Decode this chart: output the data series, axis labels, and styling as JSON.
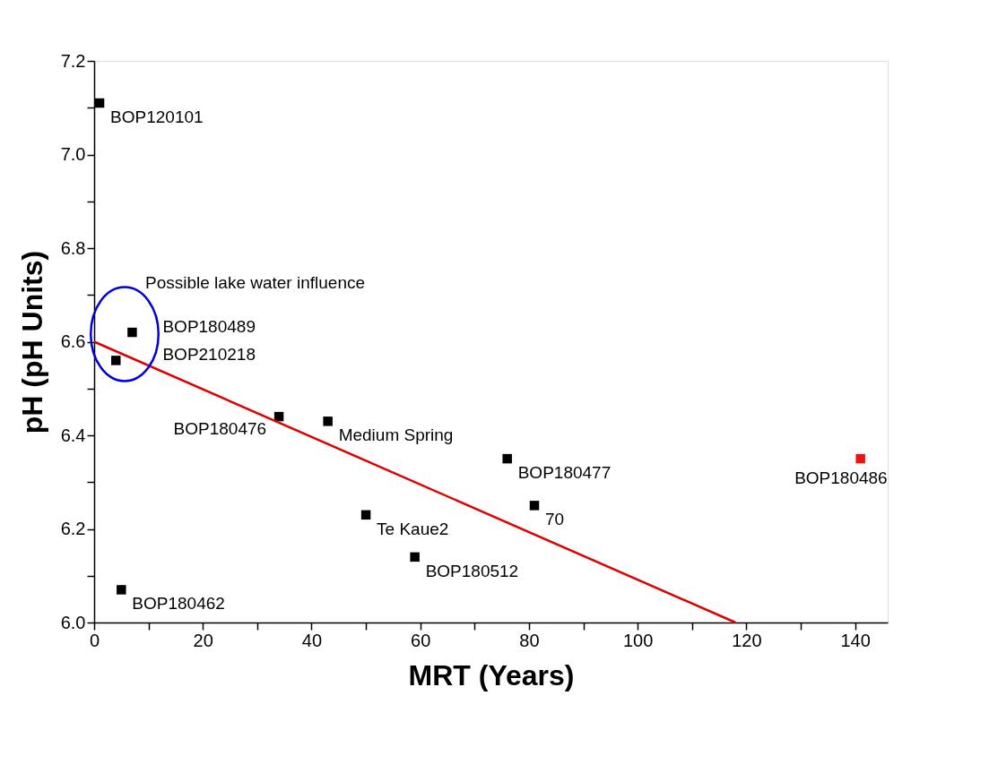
{
  "chart_data": {
    "type": "scatter",
    "xlabel": "MRT (Years)",
    "ylabel": "pH (pH Units)",
    "xlim": [
      0,
      146
    ],
    "ylim": [
      6.0,
      7.2
    ],
    "xticks": [
      0,
      {
        "value": 10,
        "label": null
      },
      20,
      {
        "value": 30,
        "label": null
      },
      40,
      {
        "value": 50,
        "label": null
      },
      60,
      {
        "value": 70,
        "label": null
      },
      80,
      {
        "value": 90,
        "label": null
      },
      100,
      {
        "value": 110,
        "label": null
      },
      120,
      {
        "value": 130,
        "label": null
      },
      140
    ],
    "yticks": [
      {
        "value": 6.0,
        "label": "6.0"
      },
      {
        "value": 6.1,
        "label": null
      },
      {
        "value": 6.2,
        "label": "6.2"
      },
      {
        "value": 6.3,
        "label": null
      },
      {
        "value": 6.4,
        "label": "6.4"
      },
      {
        "value": 6.5,
        "label": null
      },
      {
        "value": 6.6,
        "label": "6.6"
      },
      {
        "value": 6.7,
        "label": null
      },
      {
        "value": 6.8,
        "label": "6.8"
      },
      {
        "value": 6.9,
        "label": null
      },
      {
        "value": 7.0,
        "label": "7.0"
      },
      {
        "value": 7.1,
        "label": null
      },
      {
        "value": 7.2,
        "label": "7.2"
      }
    ],
    "series": [
      {
        "marker": "square",
        "x": [
          1,
          7,
          4,
          34,
          43,
          76,
          141,
          50,
          81,
          59,
          5
        ],
        "values": [
          7.11,
          6.62,
          6.56,
          6.44,
          6.43,
          6.35,
          6.35,
          6.23,
          6.25,
          6.14,
          6.07
        ],
        "colors": [
          "#000000",
          "#000000",
          "#000000",
          "#000000",
          "#000000",
          "#000000",
          "#ee1111",
          "#000000",
          "#000000",
          "#000000",
          "#000000"
        ]
      },
      {
        "type": "line",
        "marker": "none",
        "color": "#e00000",
        "x": [
          0,
          118
        ],
        "values": [
          6.6,
          6.0
        ]
      }
    ],
    "annotations": [
      "Possible lake water influence",
      {
        "text": "BOP120101",
        "x": 1,
        "y": 7.11
      },
      {
        "text": "BOP180489",
        "x": 7,
        "y": 6.62
      },
      {
        "text": "BOP210218",
        "x": 4,
        "y": 6.56
      },
      {
        "text": "BOP180476",
        "x": 34,
        "y": 6.44
      },
      {
        "text": "Medium Spring",
        "x": 43,
        "y": 6.43
      },
      {
        "text": "BOP180477",
        "x": 76,
        "y": 6.35
      },
      {
        "text": "BOP180486",
        "x": 141,
        "y": 6.35
      },
      {
        "text": "Te Kaue2",
        "x": 50,
        "y": 6.23
      },
      {
        "text": "70",
        "x": 81,
        "y": 6.25
      },
      {
        "text": "BOP180512",
        "x": 59,
        "y": 6.14
      },
      {
        "text": "BOP180462",
        "x": 5,
        "y": 6.07
      }
    ]
  }
}
